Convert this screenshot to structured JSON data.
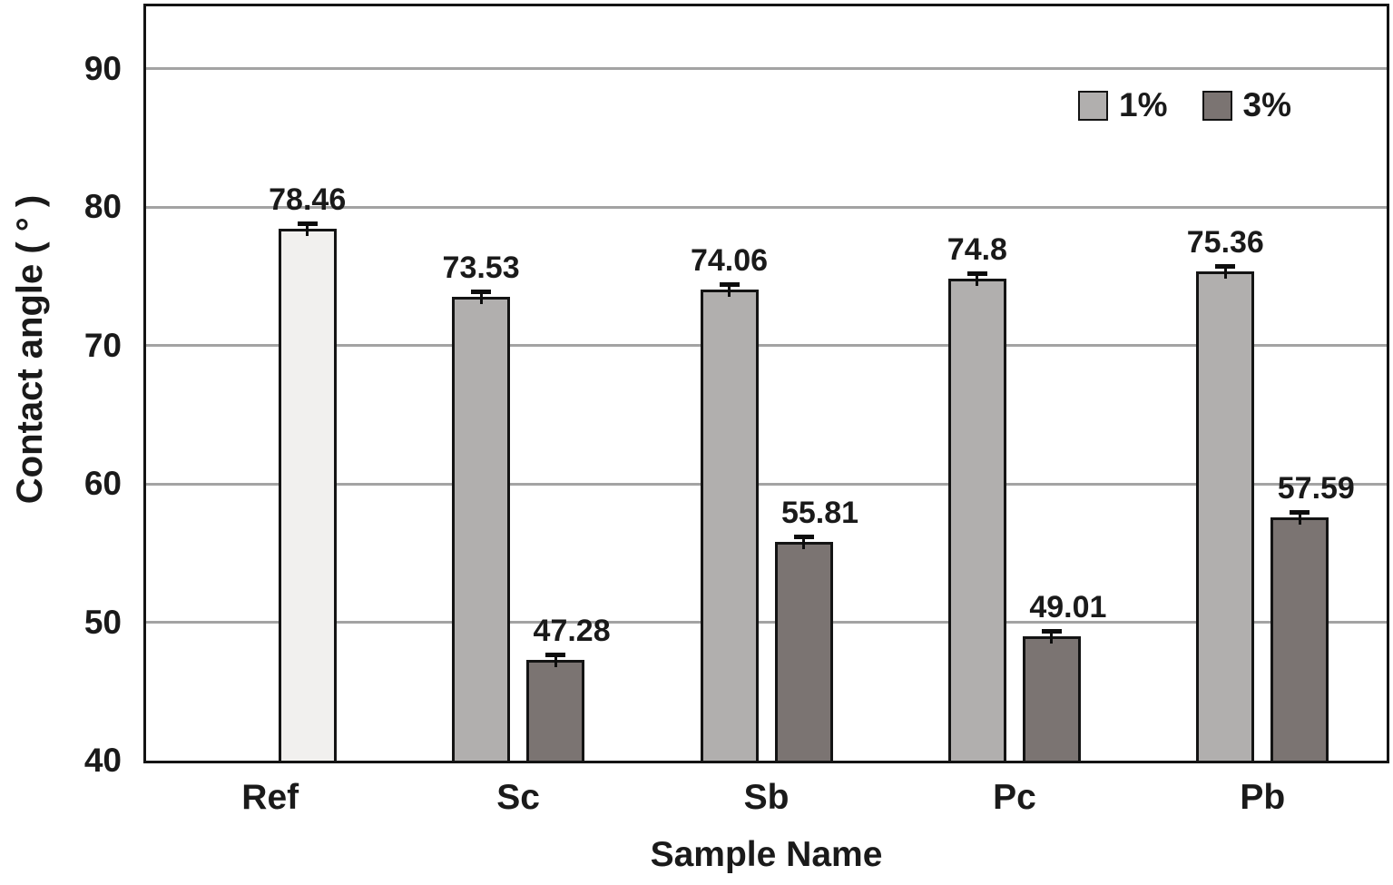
{
  "chart_data": {
    "type": "bar",
    "title": "",
    "xlabel": "Sample Name",
    "ylabel": "Contact angle ( ° )",
    "ylim": [
      40,
      94.5
    ],
    "y_ticks": [
      90,
      80,
      70,
      60,
      50,
      40
    ],
    "gridline_values": [
      90,
      80,
      70,
      60,
      50
    ],
    "grid": true,
    "legend_position": "top-right-inside",
    "error_bars": true,
    "categories": [
      "Ref",
      "Sc",
      "Sb",
      "Pc",
      "Pb"
    ],
    "series": [
      {
        "name": "Ref",
        "key": "ref",
        "slot": "right",
        "color": "#f1f0ee",
        "in_legend": false,
        "values": [
          78.46,
          null,
          null,
          null,
          null
        ],
        "labels": [
          "78.46",
          "",
          "",
          "",
          ""
        ]
      },
      {
        "name": "1%",
        "key": "pct1",
        "slot": "left",
        "color": "#b1afae",
        "in_legend": true,
        "values": [
          null,
          73.53,
          74.06,
          74.8,
          75.36
        ],
        "labels": [
          "",
          "73.53",
          "74.06",
          "74.8",
          "75.36"
        ]
      },
      {
        "name": "3%",
        "key": "pct3",
        "slot": "right",
        "color": "#7b7472",
        "in_legend": true,
        "values": [
          null,
          47.28,
          55.81,
          49.01,
          57.59
        ],
        "labels": [
          "",
          "47.28",
          "55.81",
          "49.01",
          "57.59"
        ]
      }
    ]
  },
  "colors": {
    "plot_border": "#141414",
    "bar_border": "#141414",
    "gridline": "#a3a3a3",
    "error_bar": "#0d0d0d",
    "text": "#1a1a1a",
    "background": "#ffffff"
  }
}
